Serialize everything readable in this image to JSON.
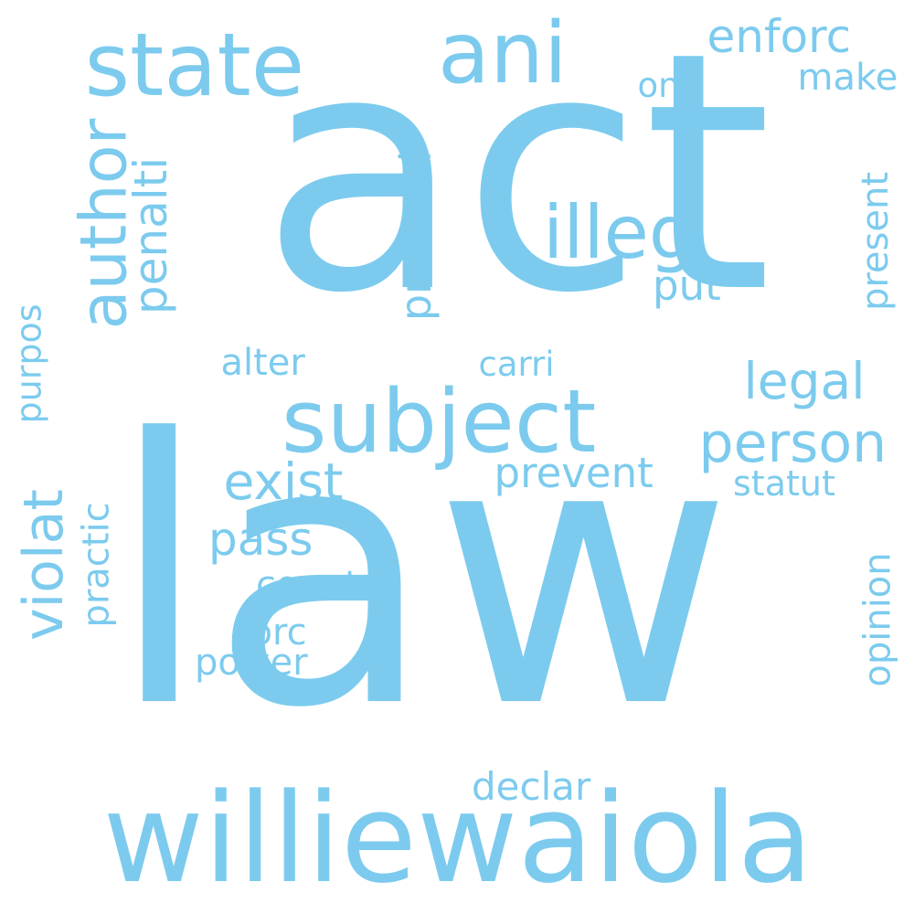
{
  "color": "#7ccbee",
  "words": [
    {
      "text": "law",
      "orientation": "horizontal"
    },
    {
      "text": "act",
      "orientation": "horizontal"
    },
    {
      "text": "williewaiola",
      "orientation": "horizontal"
    },
    {
      "text": "state",
      "orientation": "horizontal"
    },
    {
      "text": "ani",
      "orientation": "horizontal"
    },
    {
      "text": "subject",
      "orientation": "horizontal"
    },
    {
      "text": "enforc",
      "orientation": "horizontal"
    },
    {
      "text": "person",
      "orientation": "horizontal"
    },
    {
      "text": "author",
      "orientation": "vertical"
    },
    {
      "text": "penalti",
      "orientation": "vertical"
    },
    {
      "text": "illeg",
      "orientation": "horizontal"
    },
    {
      "text": "legal",
      "orientation": "horizontal"
    },
    {
      "text": "exist",
      "orientation": "horizontal"
    },
    {
      "text": "violat",
      "orientation": "vertical"
    },
    {
      "text": "pass",
      "orientation": "horizontal"
    },
    {
      "text": "prevent",
      "orientation": "horizontal"
    },
    {
      "text": "statut",
      "orientation": "horizontal"
    },
    {
      "text": "proceed",
      "orientation": "vertical"
    },
    {
      "text": "present",
      "orientation": "vertical"
    },
    {
      "text": "purpos",
      "orientation": "vertical"
    },
    {
      "text": "practic",
      "orientation": "vertical"
    },
    {
      "text": "opinion",
      "orientation": "vertical"
    },
    {
      "text": "countri",
      "orientation": "horizontal"
    },
    {
      "text": "forc",
      "orientation": "horizontal"
    },
    {
      "text": "power",
      "orientation": "horizontal"
    },
    {
      "text": "declar",
      "orientation": "horizontal"
    },
    {
      "text": "carri",
      "orientation": "horizontal"
    },
    {
      "text": "alter",
      "orientation": "horizontal"
    },
    {
      "text": "put",
      "orientation": "horizontal"
    },
    {
      "text": "onli",
      "orientation": "horizontal"
    },
    {
      "text": "make",
      "orientation": "horizontal"
    }
  ]
}
